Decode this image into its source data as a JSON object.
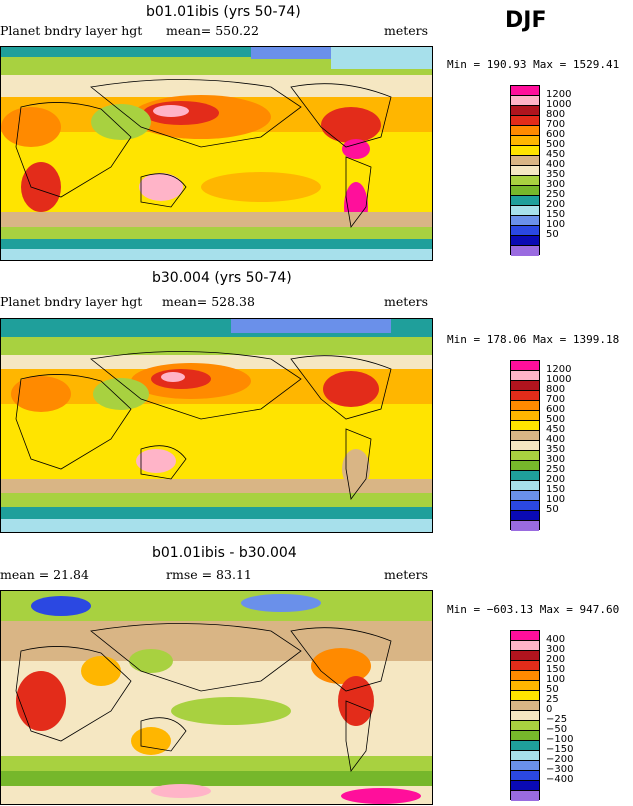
{
  "season": "DJF",
  "panels": [
    {
      "title": "b01.01ibis (yrs 50-74)",
      "left_label": "Planet bndry layer hgt",
      "mean_label": "mean= 550.22",
      "units": "meters",
      "minmax": "Min = 190.93 Max = 1529.41",
      "levels": [
        "1200",
        "1000",
        "800",
        "700",
        "600",
        "500",
        "450",
        "400",
        "350",
        "300",
        "250",
        "200",
        "150",
        "100",
        "50"
      ],
      "colors": [
        "#ff0f9b",
        "#ffb4c8",
        "#b0141e",
        "#e32c1a",
        "#ff8a00",
        "#ffb600",
        "#ffe400",
        "#d9b585",
        "#f5e7c2",
        "#a8d140",
        "#76b72b",
        "#1f9f9b",
        "#a7e0eb",
        "#6a90ea",
        "#2b48e2",
        "#0a0ab4",
        "#9a6be0"
      ]
    },
    {
      "title": "b30.004 (yrs 50-74)",
      "left_label": "Planet bndry layer hgt",
      "mean_label": "mean= 528.38",
      "units": "meters",
      "minmax": "Min = 178.06 Max = 1399.18",
      "levels": [
        "1200",
        "1000",
        "800",
        "700",
        "600",
        "500",
        "450",
        "400",
        "350",
        "300",
        "250",
        "200",
        "150",
        "100",
        "50"
      ],
      "colors": [
        "#ff0f9b",
        "#ffb4c8",
        "#b0141e",
        "#e32c1a",
        "#ff8a00",
        "#ffb600",
        "#ffe400",
        "#d9b585",
        "#f5e7c2",
        "#a8d140",
        "#76b72b",
        "#1f9f9b",
        "#a7e0eb",
        "#6a90ea",
        "#2b48e2",
        "#0a0ab4",
        "#9a6be0"
      ]
    },
    {
      "title": "b01.01ibis - b30.004",
      "left_label": "mean =  21.84",
      "mean_label": "rmse =  83.11",
      "units": "meters",
      "minmax": "Min = −603.13 Max = 947.60",
      "levels": [
        "400",
        "300",
        "200",
        "150",
        "100",
        "50",
        "25",
        "0",
        "−25",
        "−50",
        "−100",
        "−150",
        "−200",
        "−300",
        "−400"
      ],
      "colors": [
        "#ff0f9b",
        "#ffb4c8",
        "#b0141e",
        "#e32c1a",
        "#ff8a00",
        "#ffb600",
        "#ffe400",
        "#d9b585",
        "#f5e7c2",
        "#a8d140",
        "#76b72b",
        "#1f9f9b",
        "#a7e0eb",
        "#6a90ea",
        "#2b48e2",
        "#0a0ab4",
        "#9a6be0"
      ]
    }
  ]
}
